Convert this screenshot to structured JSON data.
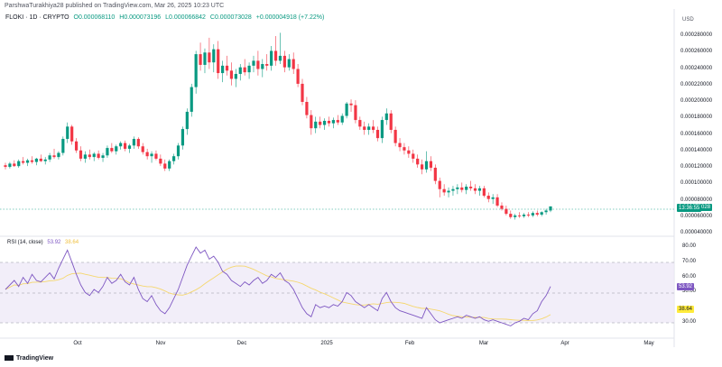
{
  "header": {
    "published_by": "ParshwaTurakhiya28 published on TradingView.com, Mar 26, 2025 10:23 UTC"
  },
  "symbol": {
    "title": "FLOKI · 1D · CRYPTO",
    "open": "O0.000068110",
    "high": "H0.000073196",
    "low": "L0.000066842",
    "close": "C0.000073028",
    "change": "+0.000004918 (+7.22%)"
  },
  "price_axis": {
    "currency": "USD",
    "ticks": [
      "0.000280000",
      "0.000260000",
      "0.000240000",
      "0.000220000",
      "0.000200000",
      "0.000180000",
      "0.000160000",
      "0.000140000",
      "0.000120000",
      "0.000100000",
      "0.000080000",
      "0.000060000",
      "0.000040000"
    ],
    "last_price": "0.000073028",
    "countdown": "13:36:55"
  },
  "rsi": {
    "title": "RSI (14, close)",
    "value": "53.92",
    "ma_value": "38.64",
    "ticks": [
      "80.00",
      "70.00",
      "60.00",
      "50.00",
      "30.00"
    ]
  },
  "time_axis": {
    "labels": [
      "Oct",
      "Nov",
      "Dec",
      "2025",
      "Feb",
      "Mar",
      "Apr",
      "May"
    ]
  },
  "footer": {
    "brand": "TradingView"
  },
  "colors": {
    "up": "#089981",
    "down": "#f23645",
    "rsi_line": "#7e57c2",
    "rsi_ma": "#f5d76e",
    "rsi_band": "#ede7f6"
  },
  "chart_data": {
    "type": "candlestick",
    "title": "FLOKI · 1D · CRYPTO",
    "ylim": [
      4e-05,
      0.00029
    ],
    "series": [
      {
        "ohlc": [
          [
            0.000123,
            0.000126,
            0.000118,
            0.000121
          ],
          [
            0.000121,
            0.000127,
            0.000119,
            0.000125
          ],
          [
            0.000125,
            0.000129,
            0.000121,
            0.000122
          ],
          [
            0.000122,
            0.00013,
            0.00012,
            0.000128
          ],
          [
            0.000128,
            0.000133,
            0.000124,
            0.000126
          ],
          [
            0.000126,
            0.000131,
            0.000122,
            0.000129
          ],
          [
            0.000129,
            0.000134,
            0.000125,
            0.000127
          ],
          [
            0.000127,
            0.000132,
            0.000123,
            0.000131
          ],
          [
            0.000131,
            0.000136,
            0.000127,
            0.000128
          ],
          [
            0.000128,
            0.000133,
            0.000124,
            0.00013
          ],
          [
            0.00013,
            0.000138,
            0.000127,
            0.000135
          ],
          [
            0.000135,
            0.000143,
            0.000131,
            0.000133
          ],
          [
            0.000133,
            0.00014,
            0.00013,
            0.000138
          ],
          [
            0.000138,
            0.000158,
            0.000135,
            0.000155
          ],
          [
            0.000155,
            0.000175,
            0.00015,
            0.00017
          ],
          [
            0.00017,
            0.000172,
            0.000148,
            0.000152
          ],
          [
            0.000152,
            0.000156,
            0.000138,
            0.000141
          ],
          [
            0.000141,
            0.000146,
            0.000128,
            0.000131
          ],
          [
            0.000131,
            0.00014,
            0.000126,
            0.000136
          ],
          [
            0.000136,
            0.000142,
            0.00013,
            0.000133
          ],
          [
            0.000133,
            0.000139,
            0.000128,
            0.000137
          ],
          [
            0.000137,
            0.000141,
            0.00013,
            0.000132
          ],
          [
            0.000132,
            0.000138,
            0.000127,
            0.000135
          ],
          [
            0.000135,
            0.000147,
            0.000132,
            0.000144
          ],
          [
            0.000144,
            0.00015,
            0.000138,
            0.00014
          ],
          [
            0.00014,
            0.000148,
            0.000136,
            0.000146
          ],
          [
            0.000146,
            0.000152,
            0.000142,
            0.00015
          ],
          [
            0.00015,
            0.000153,
            0.00014,
            0.000143
          ],
          [
            0.000143,
            0.000149,
            0.000138,
            0.000147
          ],
          [
            0.000147,
            0.000158,
            0.000143,
            0.000155
          ],
          [
            0.000155,
            0.000157,
            0.000143,
            0.000146
          ],
          [
            0.000146,
            0.00015,
            0.000136,
            0.000139
          ],
          [
            0.000139,
            0.000143,
            0.00013,
            0.000134
          ],
          [
            0.000134,
            0.00014,
            0.000126,
            0.000137
          ],
          [
            0.000137,
            0.000141,
            0.000129,
            0.000131
          ],
          [
            0.000131,
            0.000136,
            0.000122,
            0.000125
          ],
          [
            0.000125,
            0.00013,
            0.000116,
            0.000119
          ],
          [
            0.000119,
            0.00013,
            0.000116,
            0.000128
          ],
          [
            0.000128,
            0.000137,
            0.000124,
            0.000134
          ],
          [
            0.000134,
            0.00015,
            0.00013,
            0.000147
          ],
          [
            0.000147,
            0.00017,
            0.000142,
            0.000167
          ],
          [
            0.000167,
            0.000192,
            0.00016,
            0.000188
          ],
          [
            0.000188,
            0.000222,
            0.000182,
            0.000218
          ],
          [
            0.000218,
            0.000262,
            0.00021,
            0.000258
          ],
          [
            0.000258,
            0.000272,
            0.000238,
            0.000245
          ],
          [
            0.000245,
            0.000265,
            0.000235,
            0.00026
          ],
          [
            0.00026,
            0.000278,
            0.00024,
            0.000248
          ],
          [
            0.000248,
            0.00027,
            0.000236,
            0.000264
          ],
          [
            0.000264,
            0.000274,
            0.000228,
            0.000235
          ],
          [
            0.000235,
            0.00025,
            0.000224,
            0.000244
          ],
          [
            0.000244,
            0.000256,
            0.000232,
            0.000238
          ],
          [
            0.000238,
            0.000248,
            0.00022,
            0.000228
          ],
          [
            0.000228,
            0.00024,
            0.000218,
            0.000234
          ],
          [
            0.000234,
            0.000246,
            0.000226,
            0.000242
          ],
          [
            0.000242,
            0.000252,
            0.000232,
            0.000236
          ],
          [
            0.000236,
            0.000248,
            0.000228,
            0.000244
          ],
          [
            0.000244,
            0.000256,
            0.000236,
            0.00025
          ],
          [
            0.00025,
            0.000262,
            0.000232,
            0.00024
          ],
          [
            0.00024,
            0.000252,
            0.00023,
            0.000246
          ],
          [
            0.000246,
            0.000258,
            0.000238,
            0.000244
          ],
          [
            0.000244,
            0.000268,
            0.000238,
            0.000262
          ],
          [
            0.000262,
            0.00028,
            0.000244,
            0.00025
          ],
          [
            0.00025,
            0.000284,
            0.000246,
            0.000256
          ],
          [
            0.000256,
            0.000262,
            0.000236,
            0.000242
          ],
          [
            0.000242,
            0.000258,
            0.000238,
            0.000252
          ],
          [
            0.000252,
            0.00026,
            0.000234,
            0.00024
          ],
          [
            0.00024,
            0.000246,
            0.000218,
            0.000222
          ],
          [
            0.000222,
            0.000228,
            0.000196,
            0.0002
          ],
          [
            0.0002,
            0.000206,
            0.00018,
            0.000184
          ],
          [
            0.000184,
            0.00019,
            0.00016,
            0.000168
          ],
          [
            0.000168,
            0.000182,
            0.000162,
            0.000176
          ],
          [
            0.000176,
            0.000182,
            0.000168,
            0.000172
          ],
          [
            0.000172,
            0.00018,
            0.000166,
            0.000177
          ],
          [
            0.000177,
            0.000182,
            0.00017,
            0.000174
          ],
          [
            0.000174,
            0.000181,
            0.000168,
            0.000178
          ],
          [
            0.000178,
            0.000184,
            0.000172,
            0.000175
          ],
          [
            0.000175,
            0.000186,
            0.000172,
            0.000183
          ],
          [
            0.000183,
            0.0002,
            0.00018,
            0.000198
          ],
          [
            0.000198,
            0.000203,
            0.000188,
            0.000196
          ],
          [
            0.000196,
            0.000202,
            0.000174,
            0.000178
          ],
          [
            0.000178,
            0.000182,
            0.000166,
            0.00017
          ],
          [
            0.00017,
            0.000176,
            0.00016,
            0.000166
          ],
          [
            0.000166,
            0.000174,
            0.00016,
            0.00017
          ],
          [
            0.00017,
            0.000178,
            0.000162,
            0.000166
          ],
          [
            0.000166,
            0.00017,
            0.000152,
            0.000156
          ],
          [
            0.000156,
            0.000182,
            0.00015,
            0.000178
          ],
          [
            0.000178,
            0.000192,
            0.000172,
            0.000186
          ],
          [
            0.000186,
            0.00019,
            0.000162,
            0.000166
          ],
          [
            0.000166,
            0.00017,
            0.000146,
            0.00015
          ],
          [
            0.00015,
            0.000156,
            0.00014,
            0.000145
          ],
          [
            0.000145,
            0.00015,
            0.000136,
            0.000141
          ],
          [
            0.000141,
            0.000146,
            0.000132,
            0.000137
          ],
          [
            0.000137,
            0.000142,
            0.000126,
            0.000131
          ],
          [
            0.000131,
            0.000136,
            0.00012,
            0.000124
          ],
          [
            0.000124,
            0.00013,
            0.000112,
            0.000118
          ],
          [
            0.000118,
            0.00014,
            0.000114,
            0.000128
          ],
          [
            0.000128,
            0.000134,
            0.000116,
            0.00012
          ],
          [
            0.00012,
            0.000124,
            0.0001,
            0.000104
          ],
          [
            0.000104,
            0.000108,
            8.4e-05,
            9.4e-05
          ],
          [
            9.4e-05,
            0.0001,
            8.6e-05,
            9e-05
          ],
          [
            9e-05,
            9.6e-05,
            8.4e-05,
            9.2e-05
          ],
          [
            9.2e-05,
            9.8e-05,
            8.6e-05,
            9.4e-05
          ],
          [
            9.4e-05,
            0.0001,
            8.8e-05,
            9.6e-05
          ],
          [
            9.6e-05,
            0.000102,
            9e-05,
            9.3e-05
          ],
          [
            9.3e-05,
            0.0001,
            8.8e-05,
            9.7e-05
          ],
          [
            9.7e-05,
            0.000104,
            9.2e-05,
            9.5e-05
          ],
          [
            9.5e-05,
            0.0001,
            8.8e-05,
            9.2e-05
          ],
          [
            9.2e-05,
            9.8e-05,
            8.6e-05,
            9.5e-05
          ],
          [
            9.5e-05,
            9.8e-05,
            8.4e-05,
            8.6e-05
          ],
          [
            8.6e-05,
            9e-05,
            7.8e-05,
            8.2e-05
          ],
          [
            8.2e-05,
            8.8e-05,
            7.6e-05,
            8.4e-05
          ],
          [
            8.4e-05,
            8.8e-05,
            7.2e-05,
            7.4e-05
          ],
          [
            7.4e-05,
            7.8e-05,
            6.8e-05,
            7e-05
          ],
          [
            7e-05,
            7.4e-05,
            6.2e-05,
            6.4e-05
          ],
          [
            6.4e-05,
            6.8e-05,
            5.8e-05,
            6e-05
          ],
          [
            6e-05,
            6.4e-05,
            5.7e-05,
            6.2e-05
          ],
          [
            6.2e-05,
            6.6e-05,
            5.9e-05,
            6.1e-05
          ],
          [
            6.1e-05,
            6.5e-05,
            5.9e-05,
            6.3e-05
          ],
          [
            6.3e-05,
            6.6e-05,
            6e-05,
            6.2e-05
          ],
          [
            6.2e-05,
            6.7e-05,
            6e-05,
            6.5e-05
          ],
          [
            6.5e-05,
            6.8e-05,
            6.1e-05,
            6.3e-05
          ],
          [
            6.3e-05,
            6.7e-05,
            6.1e-05,
            6.6e-05
          ],
          [
            6.6e-05,
            7e-05,
            6.3e-05,
            6.8e-05
          ],
          [
            6.8e-05,
            7.3e-05,
            6.6e-05,
            7.3e-05
          ]
        ]
      }
    ],
    "rsi_series": [
      52,
      55,
      58,
      54,
      60,
      56,
      62,
      58,
      57,
      60,
      63,
      59,
      66,
      72,
      78,
      70,
      62,
      55,
      50,
      48,
      52,
      50,
      54,
      60,
      56,
      58,
      62,
      57,
      55,
      60,
      52,
      46,
      44,
      48,
      42,
      38,
      36,
      40,
      46,
      52,
      60,
      68,
      74,
      80,
      76,
      78,
      72,
      74,
      70,
      64,
      62,
      58,
      56,
      54,
      57,
      55,
      58,
      60,
      56,
      58,
      62,
      60,
      63,
      58,
      56,
      52,
      46,
      40,
      36,
      34,
      42,
      40,
      41,
      40,
      42,
      41,
      44,
      50,
      48,
      44,
      42,
      40,
      42,
      40,
      38,
      46,
      50,
      44,
      40,
      38,
      37,
      36,
      35,
      34,
      33,
      40,
      36,
      32,
      30,
      31,
      32,
      33,
      34,
      33,
      35,
      34,
      33,
      34,
      32,
      31,
      32,
      31,
      30,
      29,
      28,
      30,
      31,
      33,
      32,
      36,
      38,
      44,
      48,
      54
    ]
  }
}
